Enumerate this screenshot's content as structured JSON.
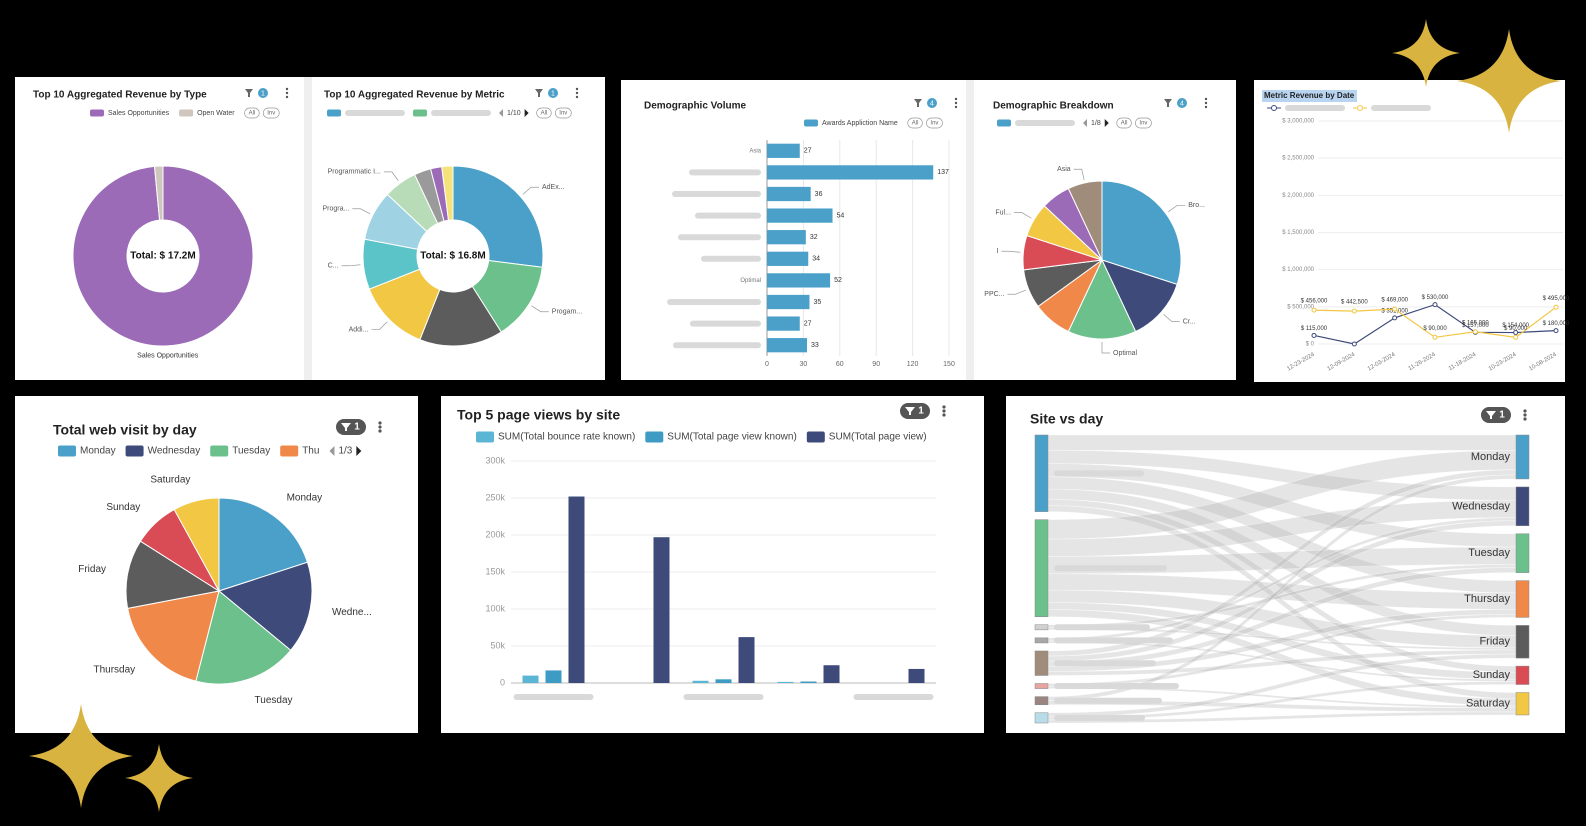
{
  "chart_data": [
    {
      "type": "donut",
      "title": "Top 10 Aggregated Revenue by Type",
      "filter_count": 1,
      "categories": [
        "Sales Opportunities",
        "Open Water"
      ],
      "legend_buttons": [
        "All",
        "Inv"
      ],
      "values": [
        98.5,
        1.5
      ],
      "colors": [
        "#9b6bb8",
        "#cfc6bd"
      ],
      "slice_labels": [
        "Sales Opportunities",
        null
      ],
      "center_label": "Total: $ 17.2M"
    },
    {
      "type": "donut",
      "title": "Top 10 Aggregated Revenue by Metric",
      "filter_count": 1,
      "page_label": "1/10",
      "legend_buttons": [
        "All",
        "Inv"
      ],
      "values": [
        27,
        14,
        15,
        13,
        9,
        9,
        6,
        3,
        2,
        2
      ],
      "colors": [
        "#4aa0c8",
        "#6cc08b",
        "#5c5c5c",
        "#f2c744",
        "#5bc4c9",
        "#9fd3e3",
        "#b8dcb8",
        "#9a9a9a",
        "#9b6bb8",
        "#f5e27a"
      ],
      "slice_labels": [
        "AdEx...",
        "Progam...",
        null,
        "Addi...",
        "C...",
        "Progra...",
        "Programmatic I...",
        null,
        null,
        null
      ],
      "center_label": "Total: $ 16.8M"
    },
    {
      "type": "hbar",
      "title": "Demographic Volume",
      "filter_count": 4,
      "legend_buttons": [
        "All",
        "Inv"
      ],
      "categories": [
        "Asia",
        null,
        null,
        null,
        null,
        null,
        "Optimal",
        null,
        null,
        null
      ],
      "series": [
        {
          "name": "Awards Appliction Name",
          "color": "#4aa0c8",
          "values": [
            27,
            137,
            36,
            54,
            32,
            34,
            52,
            35,
            27,
            33
          ]
        }
      ],
      "xlim": [
        0,
        150
      ],
      "xticks": [
        0,
        30,
        60,
        90,
        120,
        150
      ],
      "grid": true
    },
    {
      "type": "pie",
      "title": "Demographic Breakdown",
      "filter_count": 4,
      "page_label": "1/8",
      "legend_buttons": [
        "All",
        "Inv"
      ],
      "values": [
        30,
        13,
        14,
        8,
        8,
        7,
        7,
        6,
        7
      ],
      "colors": [
        "#4aa0c8",
        "#3d4a7a",
        "#6cc08b",
        "#f0884a",
        "#5c5c5c",
        "#d94b55",
        "#f2c744",
        "#9b6bb8",
        "#a08c7a"
      ],
      "slice_labels": [
        "Bro...",
        "Cr...",
        "Optimal",
        null,
        "PPC...",
        "I",
        "Ful...",
        null,
        "Asia"
      ]
    },
    {
      "type": "line",
      "title": "Metric Revenue by Date",
      "categories": [
        "12-23-2024",
        "12-09-2024",
        "12-03-2024",
        "11-26-2024",
        "11-18-2024",
        "10-23-2024",
        "10-08-2024"
      ],
      "series": [
        {
          "name": null,
          "color": "#3d4a7a",
          "values": [
            115000,
            0,
            351000,
            530000,
            157000,
            154000,
            180000
          ],
          "value_labels": [
            "$ 115,000",
            null,
            "$ 351,000",
            "$ 530,000",
            "$ 157,000",
            "$ 154,000",
            "$ 180,000"
          ]
        },
        {
          "name": null,
          "color": "#f2c744",
          "values": [
            456000,
            442500,
            469000,
            90000,
            165000,
            90000,
            495000
          ],
          "value_labels": [
            "$ 456,000",
            "$ 442,500",
            "$ 469,000",
            "$ 90,000",
            "$ 165,000",
            "$ 90,000",
            "$ 495,000"
          ]
        }
      ],
      "ylim": [
        0,
        3000000
      ],
      "yticks": [
        {
          "value": 0,
          "label": "$ 0"
        },
        {
          "value": 500000,
          "label": "$ 500,000"
        },
        {
          "value": 1000000,
          "label": "$ 1,000,000"
        },
        {
          "value": 1500000,
          "label": "$ 1,500,000"
        },
        {
          "value": 2000000,
          "label": "$ 2,000,000"
        },
        {
          "value": 2500000,
          "label": "$ 2,500,000"
        },
        {
          "value": 3000000,
          "label": "$ 3,000,000"
        }
      ],
      "grid": true
    },
    {
      "type": "pie",
      "title": "Total web visit by day",
      "filter_count": 1,
      "legend_labels": [
        "Monday",
        "Wednesday",
        "Tuesday",
        "Thu"
      ],
      "page_label": "1/3",
      "values": [
        20,
        16,
        18,
        18,
        12,
        8,
        8
      ],
      "colors": [
        "#4aa0c8",
        "#3d4a7a",
        "#6cc08b",
        "#f0884a",
        "#5c5c5c",
        "#d94b55",
        "#f2c744"
      ],
      "slice_labels": [
        "Monday",
        "Wedne...",
        "Tuesday",
        "Thursday",
        "Friday",
        "Sunday",
        "Saturday"
      ]
    },
    {
      "type": "grouped_bar",
      "title": "Top 5 page views by site",
      "filter_count": 1,
      "categories": [
        null,
        null,
        null,
        null,
        null
      ],
      "series": [
        {
          "name": "SUM(Total bounce rate known)",
          "color": "#5bb5d5",
          "values": [
            10000,
            0,
            3000,
            1500,
            0
          ]
        },
        {
          "name": "SUM(Total page view known)",
          "color": "#3e9bc4",
          "values": [
            17000,
            0,
            5000,
            2000,
            0
          ]
        },
        {
          "name": "SUM(Total page view)",
          "color": "#3d4a7a",
          "values": [
            252000,
            197000,
            62000,
            24000,
            19000
          ]
        }
      ],
      "ylim": [
        0,
        300000
      ],
      "yticks": [
        0,
        {
          "value": 50000,
          "label": "50k"
        },
        {
          "value": 100000,
          "label": "100k"
        },
        {
          "value": 150000,
          "label": "150k"
        },
        {
          "value": 200000,
          "label": "200k"
        },
        {
          "value": 250000,
          "label": "250k"
        },
        {
          "value": 300000,
          "label": "300k"
        }
      ],
      "grid": true
    },
    {
      "type": "sankey",
      "title": "Site vs day",
      "filter_count": 1,
      "left_nodes": [
        {
          "name": null,
          "value": 75,
          "color": "#4aa0c8"
        },
        {
          "name": null,
          "value": 95,
          "color": "#6cc08b"
        },
        {
          "name": null,
          "value": 5,
          "color": "#d0d0d0"
        },
        {
          "name": null,
          "value": 5,
          "color": "#a8a8a8"
        },
        {
          "name": null,
          "value": 24,
          "color": "#a08c7a"
        },
        {
          "name": null,
          "value": 5,
          "color": "#e8a5a0"
        },
        {
          "name": null,
          "value": 8,
          "color": "#9a8580"
        },
        {
          "name": null,
          "value": 10,
          "color": "#b8dde8"
        }
      ],
      "right_nodes": [
        {
          "name": "Monday",
          "value": 43,
          "color": "#4aa0c8"
        },
        {
          "name": "Wednesday",
          "value": 38,
          "color": "#3d4a7a"
        },
        {
          "name": "Tuesday",
          "value": 38,
          "color": "#6cc08b"
        },
        {
          "name": "Thursday",
          "value": 36,
          "color": "#f0884a"
        },
        {
          "name": "Friday",
          "value": 32,
          "color": "#5c5c5c"
        },
        {
          "name": "Sunday",
          "value": 18,
          "color": "#d94b55"
        },
        {
          "name": "Saturday",
          "value": 22,
          "color": "#f2c744"
        }
      ],
      "links": [
        {
          "source": 0,
          "target": 0,
          "value": 15
        },
        {
          "source": 0,
          "target": 1,
          "value": 13
        },
        {
          "source": 0,
          "target": 2,
          "value": 13
        },
        {
          "source": 0,
          "target": 3,
          "value": 12
        },
        {
          "source": 0,
          "target": 4,
          "value": 10
        },
        {
          "source": 0,
          "target": 5,
          "value": 6
        },
        {
          "source": 0,
          "target": 6,
          "value": 6
        },
        {
          "source": 1,
          "target": 0,
          "value": 19
        },
        {
          "source": 1,
          "target": 1,
          "value": 17
        },
        {
          "source": 1,
          "target": 2,
          "value": 17
        },
        {
          "source": 1,
          "target": 3,
          "value": 16
        },
        {
          "source": 1,
          "target": 4,
          "value": 12
        },
        {
          "source": 1,
          "target": 5,
          "value": 7
        },
        {
          "source": 1,
          "target": 6,
          "value": 7
        },
        {
          "source": 2,
          "target": 2,
          "value": 3
        },
        {
          "source": 2,
          "target": 4,
          "value": 2
        },
        {
          "source": 3,
          "target": 1,
          "value": 3
        },
        {
          "source": 3,
          "target": 5,
          "value": 2
        },
        {
          "source": 4,
          "target": 0,
          "value": 5
        },
        {
          "source": 4,
          "target": 1,
          "value": 5
        },
        {
          "source": 4,
          "target": 2,
          "value": 5
        },
        {
          "source": 4,
          "target": 3,
          "value": 5
        },
        {
          "source": 4,
          "target": 4,
          "value": 4
        },
        {
          "source": 5,
          "target": 3,
          "value": 3
        },
        {
          "source": 5,
          "target": 6,
          "value": 2
        },
        {
          "source": 6,
          "target": 0,
          "value": 4
        },
        {
          "source": 6,
          "target": 6,
          "value": 4
        },
        {
          "source": 7,
          "target": 4,
          "value": 4
        },
        {
          "source": 7,
          "target": 5,
          "value": 3
        },
        {
          "source": 7,
          "target": 6,
          "value": 3
        }
      ]
    }
  ]
}
